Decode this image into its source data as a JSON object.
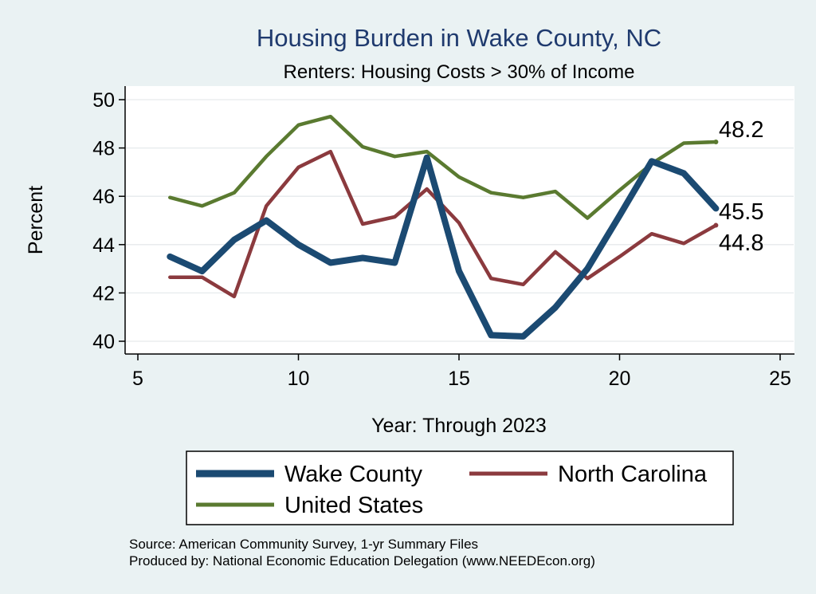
{
  "chart_data": {
    "type": "line",
    "title": "Housing Burden in Wake County, NC",
    "subtitle": "Renters: Housing Costs > 30% of Income",
    "xlabel": "Year: Through 2023",
    "ylabel": "Percent",
    "xlim": [
      5,
      25
    ],
    "ylim": [
      40,
      50
    ],
    "xticks": [
      5,
      10,
      15,
      20,
      25
    ],
    "yticks": [
      40,
      42,
      44,
      46,
      48,
      50
    ],
    "grid": true,
    "series": [
      {
        "name": "Wake County",
        "color": "#1b4a72",
        "x": [
          6,
          7,
          8,
          9,
          10,
          11,
          12,
          13,
          14,
          15,
          16,
          17,
          18,
          19,
          20,
          21,
          22,
          23
        ],
        "values": [
          43.5,
          42.9,
          44.2,
          45.0,
          44.0,
          43.25,
          43.45,
          43.25,
          47.6,
          42.9,
          40.25,
          40.2,
          41.4,
          43.0,
          45.2,
          47.45,
          46.95,
          45.5
        ],
        "end_label": "45.5"
      },
      {
        "name": "North Carolina",
        "color": "#8b3a3e",
        "x": [
          6,
          7,
          8,
          9,
          10,
          11,
          12,
          13,
          14,
          15,
          16,
          17,
          18,
          19,
          20,
          21,
          22,
          23
        ],
        "values": [
          42.65,
          42.65,
          41.85,
          45.6,
          47.2,
          47.85,
          44.85,
          45.15,
          46.3,
          44.9,
          42.6,
          42.35,
          43.7,
          42.6,
          43.5,
          44.45,
          44.05,
          44.8
        ],
        "end_label": "44.8"
      },
      {
        "name": "United States",
        "color": "#5a7a30",
        "x": [
          6,
          7,
          8,
          9,
          10,
          11,
          12,
          13,
          14,
          15,
          16,
          17,
          18,
          19,
          20,
          21,
          22,
          23
        ],
        "values": [
          45.95,
          45.6,
          46.15,
          47.65,
          48.95,
          49.3,
          48.05,
          47.65,
          47.85,
          46.8,
          46.15,
          45.95,
          46.2,
          45.1,
          46.25,
          47.35,
          48.2,
          48.25
        ],
        "end_label": "48.2"
      }
    ]
  },
  "legend": {
    "items": [
      "Wake County",
      "North Carolina",
      "United States"
    ]
  },
  "notes": {
    "source": "Source: American Community Survey, 1-yr Summary Files",
    "produced": "Produced by: National Economic Education Delegation (www.NEEDEcon.org)"
  }
}
